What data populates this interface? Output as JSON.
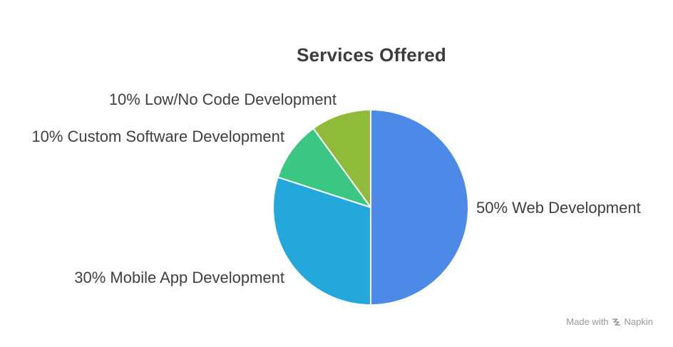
{
  "chart_data": {
    "type": "pie",
    "title": "Services Offered",
    "slices": [
      {
        "label": "Web Development",
        "value": 50,
        "percent_text": "50%",
        "color": "#4d89e6"
      },
      {
        "label": "Mobile App Development",
        "value": 30,
        "percent_text": "30%",
        "color": "#24a8dc"
      },
      {
        "label": "Custom Software Development",
        "value": 10,
        "percent_text": "10%",
        "color": "#3cc683"
      },
      {
        "label": "Low/No Code Development",
        "value": 10,
        "percent_text": "10%",
        "color": "#8fba3a"
      }
    ],
    "labels": {
      "web": "50% Web Development",
      "mobile": "30% Mobile App Development",
      "custom": "10% Custom Software Development",
      "lowcode": "10% Low/No Code Development"
    }
  },
  "watermark": {
    "text": "Made with",
    "brand": "Napkin",
    "icon": "napkin-logo-icon"
  }
}
